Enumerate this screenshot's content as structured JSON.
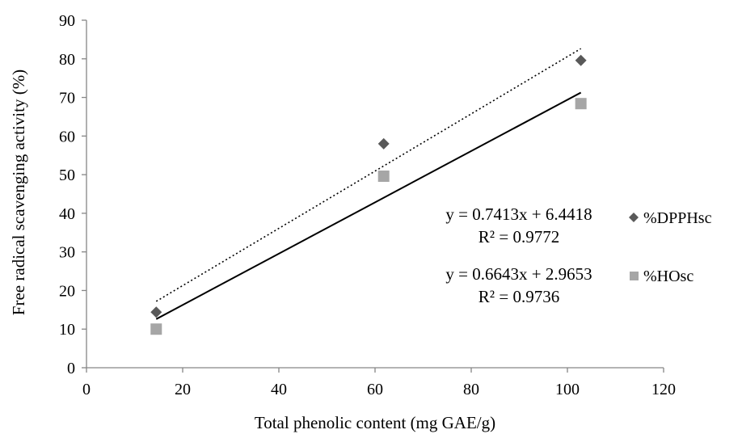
{
  "chart_data": {
    "type": "scatter",
    "xlabel": "Total phenolic content (mg GAE/g)",
    "ylabel": "Free radical scavenging activity (%)",
    "xlim": [
      0,
      120
    ],
    "ylim": [
      0,
      90
    ],
    "xticks": [
      "0",
      "20",
      "40",
      "60",
      "80",
      "100",
      "120"
    ],
    "yticks": [
      "0",
      "10",
      "20",
      "30",
      "40",
      "50",
      "60",
      "70",
      "80",
      "90"
    ],
    "grid": false,
    "legend_position": "right",
    "series": [
      {
        "name": "%DPPHsc",
        "marker": "diamond",
        "color": "#595959",
        "x": [
          14.5,
          61.8,
          102.8
        ],
        "y": [
          14.4,
          58.0,
          79.6
        ],
        "trendline": {
          "style": "dotted",
          "slope": 0.7413,
          "intercept": 6.4418,
          "x_range": [
            14.5,
            102.8
          ]
        },
        "equation": "y = 0.7413x + 6.4418",
        "r2": "R² = 0.9772"
      },
      {
        "name": "%HOsc",
        "marker": "square",
        "color": "#a6a6a6",
        "x": [
          14.5,
          61.8,
          102.8
        ],
        "y": [
          10.0,
          49.6,
          68.4
        ],
        "trendline": {
          "style": "solid",
          "slope": 0.6643,
          "intercept": 2.9653,
          "x_range": [
            14.5,
            102.8
          ]
        },
        "equation": "y = 0.6643x + 2.9653",
        "r2": "R² = 0.9736"
      }
    ]
  }
}
